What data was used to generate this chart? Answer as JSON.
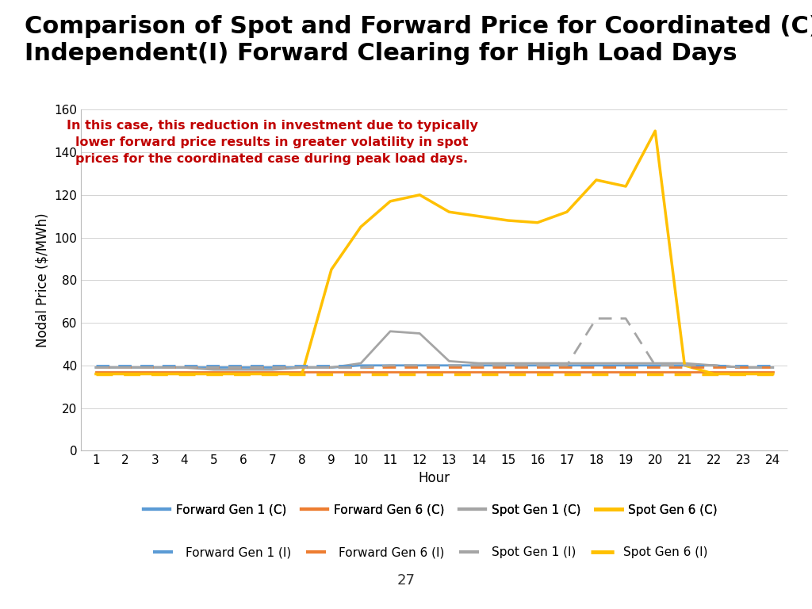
{
  "title": "Comparison of Spot and Forward Price for Coordinated (C) vs\nIndependent(I) Forward Clearing for High Load Days",
  "xlabel": "Hour",
  "ylabel": "Nodal Price ($/MWh)",
  "hours": [
    1,
    2,
    3,
    4,
    5,
    6,
    7,
    8,
    9,
    10,
    11,
    12,
    13,
    14,
    15,
    16,
    17,
    18,
    19,
    20,
    21,
    22,
    23,
    24
  ],
  "forward_gen1_C": [
    39,
    39,
    39,
    39,
    39,
    39,
    39,
    39,
    39,
    40,
    40,
    40,
    40,
    40,
    40,
    40,
    40,
    40,
    40,
    40,
    40,
    40,
    39,
    39
  ],
  "forward_gen6_C": [
    37,
    37,
    37,
    37,
    37,
    37,
    37,
    37,
    37,
    37,
    37,
    37,
    37,
    37,
    37,
    37,
    37,
    37,
    37,
    37,
    37,
    37,
    37,
    37
  ],
  "spot_gen1_C": [
    39,
    39,
    39,
    39,
    38,
    38,
    38,
    39,
    39,
    41,
    56,
    55,
    42,
    41,
    41,
    41,
    41,
    41,
    41,
    41,
    41,
    40,
    39,
    39
  ],
  "spot_gen6_C": [
    36,
    36,
    36,
    36,
    36,
    36,
    36,
    36,
    85,
    105,
    117,
    120,
    112,
    110,
    108,
    107,
    112,
    127,
    124,
    150,
    40,
    36,
    36,
    36
  ],
  "forward_gen1_I": [
    40,
    40,
    40,
    40,
    40,
    40,
    40,
    40,
    40,
    40,
    40,
    40,
    40,
    40,
    40,
    40,
    40,
    40,
    40,
    40,
    40,
    40,
    40,
    40
  ],
  "forward_gen6_I": [
    39,
    39,
    39,
    39,
    39,
    39,
    39,
    39,
    39,
    39,
    39,
    39,
    39,
    39,
    39,
    39,
    39,
    39,
    39,
    39,
    39,
    39,
    39,
    39
  ],
  "spot_gen1_I": [
    39,
    39,
    39,
    39,
    39,
    39,
    39,
    39,
    39,
    39,
    40,
    40,
    40,
    40,
    40,
    40,
    40,
    62,
    62,
    40,
    40,
    40,
    39,
    39
  ],
  "spot_gen6_I": [
    36,
    36,
    36,
    36,
    36,
    36,
    36,
    36,
    36,
    36,
    36,
    36,
    36,
    36,
    36,
    36,
    36,
    36,
    36,
    36,
    36,
    36,
    36,
    36
  ],
  "color_fwd_gen1": "#5B9BD5",
  "color_fwd_gen6": "#ED7D31",
  "color_spot_gen1": "#A5A5A5",
  "color_spot_gen6": "#FFC000",
  "annotation_text": "In this case, this reduction in investment due to typically\nlower forward price results in greater volatility in spot\nprices for the coordinated case during peak load days.",
  "annotation_color": "#C00000",
  "ylim": [
    0,
    160
  ],
  "yticks": [
    0,
    20,
    40,
    60,
    80,
    100,
    120,
    140,
    160
  ],
  "background_color": "#FFFFFF",
  "title_fontsize": 22,
  "axis_label_fontsize": 12,
  "tick_fontsize": 11,
  "annotation_fontsize": 11.5,
  "legend_fontsize": 11,
  "page_number": "27",
  "bottom_bar_color": "#D04A10",
  "legend_row1": [
    "Forward Gen 1 (C)",
    "Forward Gen 6 (C)",
    "Spot Gen 1 (C)",
    "Spot Gen 6 (C)"
  ],
  "legend_row2": [
    "Forward Gen 1 (I)",
    "Forward Gen 6 (I)",
    "Spot Gen 1 (I)",
    "Spot Gen 6 (I)"
  ]
}
